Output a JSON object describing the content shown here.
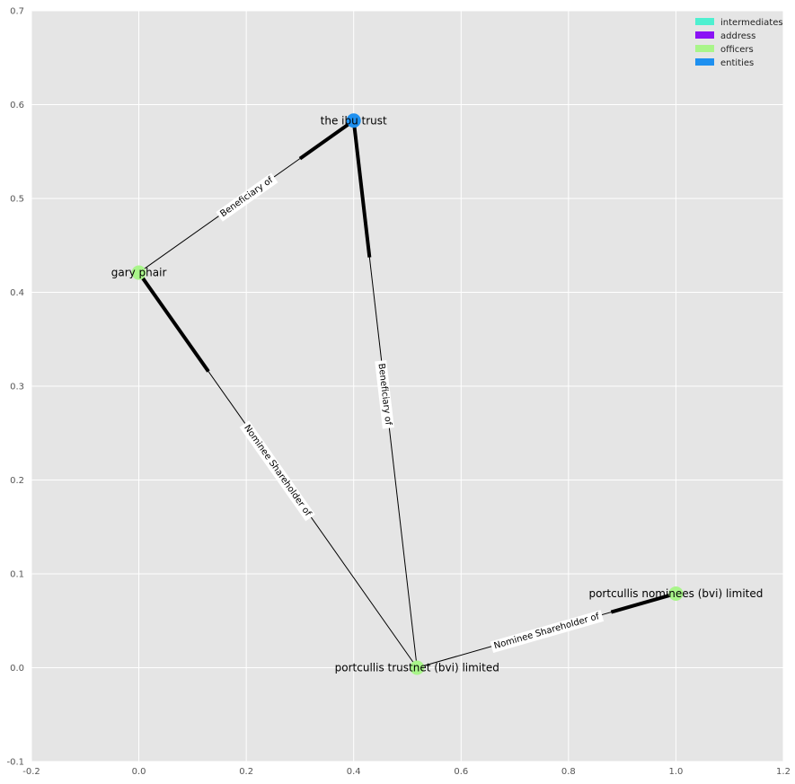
{
  "chart_data": {
    "type": "network",
    "xlim": [
      -0.2,
      1.2
    ],
    "ylim": [
      -0.1,
      0.7
    ],
    "x_ticks": [
      "-0.2",
      "0.0",
      "0.2",
      "0.4",
      "0.6",
      "0.8",
      "1.0",
      "1.2"
    ],
    "y_ticks": [
      "-0.1",
      "0.0",
      "0.1",
      "0.2",
      "0.3",
      "0.4",
      "0.5",
      "0.6",
      "0.7"
    ],
    "grid": true,
    "legend_placement": "top-right",
    "legend": [
      {
        "label": "intermediates",
        "color": "#4ef0d0"
      },
      {
        "label": "address",
        "color": "#8a12f5"
      },
      {
        "label": "officers",
        "color": "#a9f58a"
      },
      {
        "label": "entities",
        "color": "#1e90f0"
      }
    ],
    "nodes": [
      {
        "id": "ibu",
        "label": "the ibu trust",
        "x": 0.4,
        "y": 0.583,
        "category": "entities",
        "color": "#1e90f0"
      },
      {
        "id": "gary",
        "label": "gary phair",
        "x": 0.0,
        "y": 0.421,
        "category": "officers",
        "color": "#a9f58a"
      },
      {
        "id": "trustnet",
        "label": "portcullis trustnet (bvi) limited",
        "x": 0.518,
        "y": 0.0,
        "category": "officers",
        "color": "#a9f58a"
      },
      {
        "id": "nominees",
        "label": "portcullis nominees (bvi) limited",
        "x": 1.0,
        "y": 0.079,
        "category": "officers",
        "color": "#a9f58a"
      }
    ],
    "edges": [
      {
        "source": "gary",
        "target": "ibu",
        "label": "Beneficiary of"
      },
      {
        "source": "trustnet",
        "target": "ibu",
        "label": "Beneficiary of"
      },
      {
        "source": "trustnet",
        "target": "gary",
        "label": "Nominee Shareholder of"
      },
      {
        "source": "trustnet",
        "target": "nominees",
        "label": "Nominee Shareholder of"
      }
    ]
  }
}
